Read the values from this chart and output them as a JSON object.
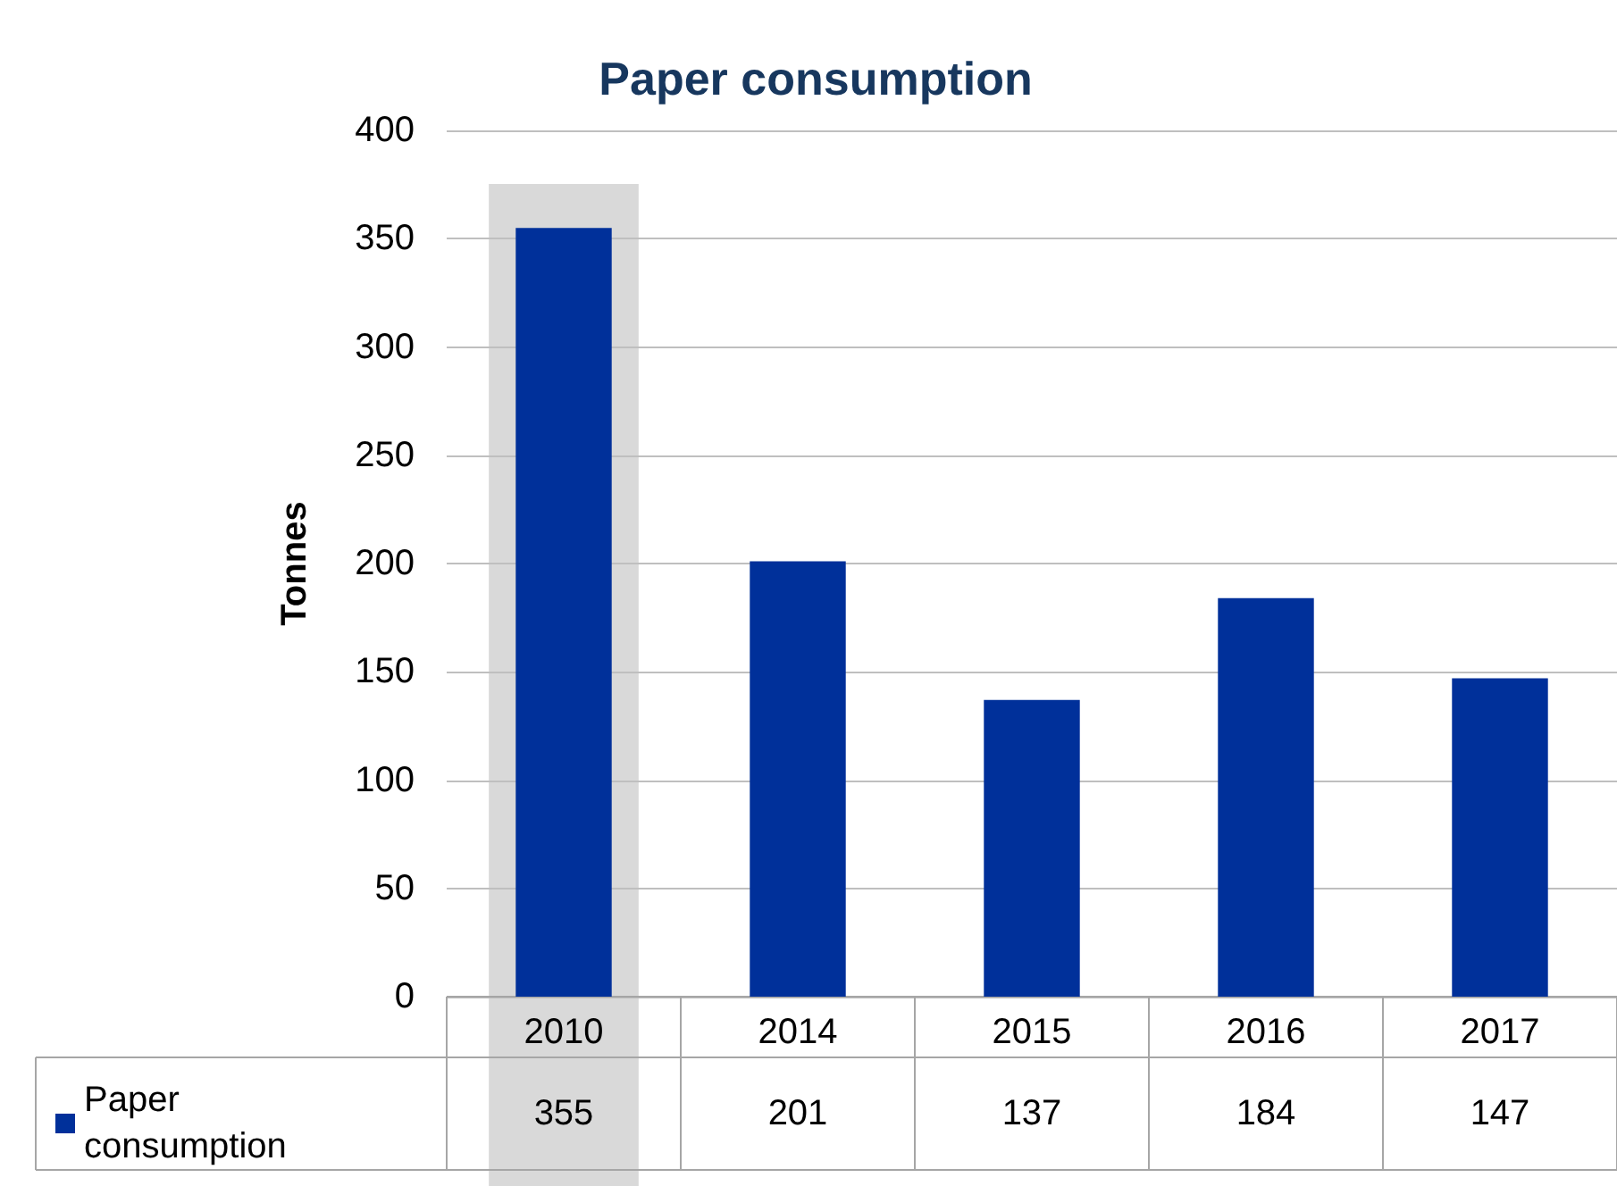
{
  "chart_data": {
    "type": "bar",
    "title": "Paper consumption",
    "ylabel": "Tonnes",
    "categories": [
      "2010",
      "2014",
      "2015",
      "2016",
      "2017"
    ],
    "series": [
      {
        "name": "Paper consumption",
        "color": "#00309a",
        "values": [
          355,
          201,
          137,
          184,
          147
        ]
      }
    ],
    "ylim": [
      0,
      400
    ],
    "yticks": [
      0,
      50,
      100,
      150,
      200,
      250,
      300,
      350,
      400
    ],
    "grid": "y",
    "legend": "bottom left",
    "data_labels": true,
    "bands": [
      {
        "axis": "x",
        "from": "2010",
        "to": "2010",
        "color": "#d9d9d9"
      }
    ]
  }
}
